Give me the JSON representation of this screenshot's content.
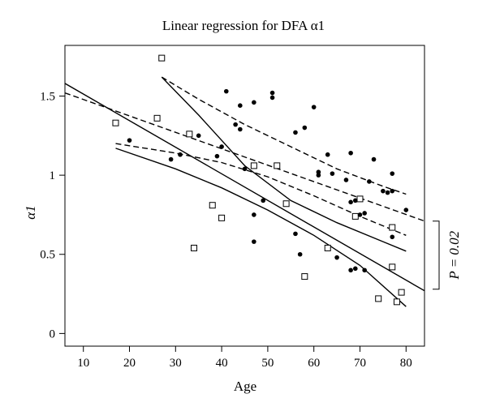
{
  "chart_data": {
    "type": "scatter",
    "title": "Linear regression for DFA α1",
    "xlabel": "Age",
    "ylabel": "α1",
    "xlim": [
      6,
      84
    ],
    "ylim": [
      -0.08,
      1.82
    ],
    "x_ticks": [
      10,
      20,
      30,
      40,
      50,
      60,
      70,
      80
    ],
    "x_tick_labels": [
      "10",
      "20",
      "30",
      "40",
      "50",
      "60",
      "70",
      "80"
    ],
    "y_ticks": [
      0,
      0.5,
      1,
      1.5
    ],
    "y_tick_labels": [
      "0",
      "0.5",
      "1",
      "1.5"
    ],
    "grid": false,
    "annotation": {
      "text": "P = 0.02",
      "y_from": 0.28,
      "y_to": 0.71
    },
    "series": [
      {
        "marker": "open-square",
        "points": [
          [
            17,
            1.33
          ],
          [
            26,
            1.36
          ],
          [
            27,
            1.74
          ],
          [
            33,
            1.26
          ],
          [
            34,
            0.54
          ],
          [
            38,
            0.81
          ],
          [
            40,
            0.73
          ],
          [
            47,
            1.06
          ],
          [
            52,
            1.06
          ],
          [
            54,
            0.82
          ],
          [
            58,
            0.36
          ],
          [
            63,
            0.54
          ],
          [
            69,
            0.74
          ],
          [
            70,
            0.85
          ],
          [
            74,
            0.22
          ],
          [
            77,
            0.67
          ],
          [
            77,
            0.42
          ],
          [
            78,
            0.2
          ],
          [
            79,
            0.26
          ]
        ]
      },
      {
        "marker": "filled-circle",
        "points": [
          [
            20,
            1.22
          ],
          [
            29,
            1.1
          ],
          [
            31,
            1.13
          ],
          [
            35,
            1.25
          ],
          [
            39,
            1.12
          ],
          [
            40,
            1.18
          ],
          [
            41,
            1.53
          ],
          [
            43,
            1.32
          ],
          [
            44,
            1.44
          ],
          [
            44,
            1.29
          ],
          [
            45,
            1.04
          ],
          [
            47,
            1.46
          ],
          [
            47,
            0.75
          ],
          [
            47,
            0.58
          ],
          [
            49,
            0.84
          ],
          [
            51,
            1.52
          ],
          [
            51,
            1.49
          ],
          [
            56,
            1.27
          ],
          [
            56,
            0.63
          ],
          [
            57,
            0.5
          ],
          [
            58,
            1.3
          ],
          [
            60,
            1.43
          ],
          [
            61,
            1.02
          ],
          [
            61,
            1.0
          ],
          [
            63,
            1.13
          ],
          [
            64,
            1.01
          ],
          [
            65,
            0.48
          ],
          [
            67,
            0.97
          ],
          [
            68,
            1.14
          ],
          [
            68,
            0.83
          ],
          [
            68,
            0.4
          ],
          [
            69,
            0.84
          ],
          [
            69,
            0.41
          ],
          [
            70,
            0.75
          ],
          [
            71,
            0.76
          ],
          [
            71,
            0.4
          ],
          [
            72,
            0.96
          ],
          [
            73,
            1.1
          ],
          [
            75,
            0.9
          ],
          [
            76,
            0.89
          ],
          [
            77,
            1.01
          ],
          [
            77,
            0.9
          ],
          [
            77,
            0.61
          ],
          [
            80,
            0.78
          ]
        ]
      }
    ],
    "lines": [
      {
        "style": "solid",
        "role": "fit",
        "points": [
          [
            6,
            1.58
          ],
          [
            84,
            0.27
          ]
        ]
      },
      {
        "style": "solid",
        "role": "ci",
        "points": [
          [
            17,
            1.17
          ],
          [
            30,
            1.04
          ],
          [
            40,
            0.92
          ],
          [
            50,
            0.78
          ],
          [
            60,
            0.62
          ],
          [
            70,
            0.43
          ],
          [
            80,
            0.17
          ]
        ]
      },
      {
        "style": "solid",
        "role": "ci",
        "points": [
          [
            27,
            1.62
          ],
          [
            35,
            1.38
          ],
          [
            45,
            1.06
          ],
          [
            55,
            0.84
          ],
          [
            65,
            0.7
          ],
          [
            75,
            0.58
          ],
          [
            80,
            0.52
          ]
        ]
      },
      {
        "style": "dashed",
        "role": "fit",
        "points": [
          [
            6,
            1.52
          ],
          [
            84,
            0.71
          ]
        ]
      },
      {
        "style": "dashed",
        "role": "ci",
        "points": [
          [
            17,
            1.2
          ],
          [
            30,
            1.14
          ],
          [
            40,
            1.08
          ],
          [
            50,
            0.99
          ],
          [
            60,
            0.87
          ],
          [
            70,
            0.74
          ],
          [
            80,
            0.62
          ]
        ]
      },
      {
        "style": "dashed",
        "role": "ci",
        "points": [
          [
            27,
            1.62
          ],
          [
            35,
            1.48
          ],
          [
            45,
            1.32
          ],
          [
            55,
            1.18
          ],
          [
            65,
            1.04
          ],
          [
            75,
            0.93
          ],
          [
            80,
            0.88
          ]
        ]
      }
    ]
  }
}
